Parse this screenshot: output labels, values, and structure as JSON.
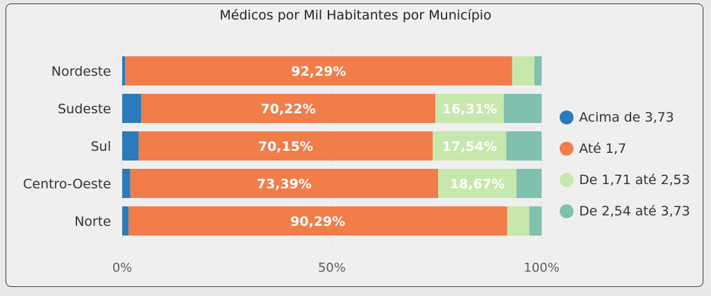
{
  "chart_data": {
    "type": "bar",
    "orientation": "horizontal",
    "stacked": "100%",
    "title": "Médicos por Mil Habitantes por Município",
    "categories": [
      "Nordeste",
      "Sudeste",
      "Sul",
      "Centro-Oeste",
      "Norte"
    ],
    "series": [
      {
        "name": "Acima de 3,73",
        "color": "#2b7bba",
        "values": [
          0.7,
          4.47,
          3.9,
          1.94,
          1.5
        ]
      },
      {
        "name": "Até 1,7",
        "color": "#f07d4a",
        "values": [
          92.29,
          70.22,
          70.15,
          73.39,
          90.29
        ]
      },
      {
        "name": "De 1,71 até 2,53",
        "color": "#c6e8ac",
        "values": [
          5.3,
          16.31,
          17.54,
          18.67,
          5.3
        ]
      },
      {
        "name": "De 2,54 até 3,73",
        "color": "#7fc0ae",
        "values": [
          1.71,
          9.0,
          8.41,
          6.0,
          2.91
        ]
      }
    ],
    "data_labels": [
      [
        "",
        "92,29%",
        "",
        ""
      ],
      [
        "",
        "70,22%",
        "16,31%",
        ""
      ],
      [
        "",
        "70,15%",
        "17,54%",
        ""
      ],
      [
        "",
        "73,39%",
        "18,67%",
        ""
      ],
      [
        "",
        "90,29%",
        "",
        ""
      ]
    ],
    "x_ticks": [
      "0%",
      "50%",
      "100%"
    ],
    "xlim": [
      0,
      100
    ],
    "grid": "vertical dotted",
    "legend": "right"
  }
}
